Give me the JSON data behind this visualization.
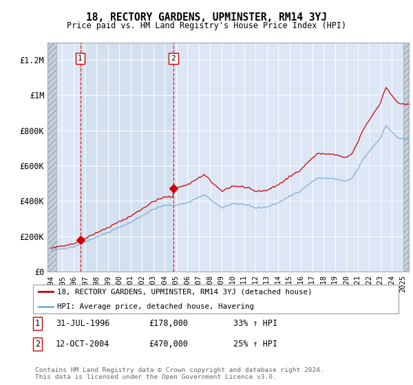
{
  "title": "18, RECTORY GARDENS, UPMINSTER, RM14 3YJ",
  "subtitle": "Price paid vs. HM Land Registry's House Price Index (HPI)",
  "ylabel_ticks": [
    "£0",
    "£200K",
    "£400K",
    "£600K",
    "£800K",
    "£1M",
    "£1.2M"
  ],
  "ylim": [
    0,
    1300000
  ],
  "xlim_start": 1993.7,
  "xlim_end": 2025.5,
  "sale1_x": 1996.58,
  "sale1_y": 178000,
  "sale1_label": "1",
  "sale2_x": 2004.78,
  "sale2_y": 470000,
  "sale2_label": "2",
  "hatch_left_end": 1994.5,
  "hatch_right_start": 2025.0,
  "shade_between_start": 1994.5,
  "shade_between_end": 2025.0,
  "bg_color": "#e8eef7",
  "plot_bg": "#dde6f5",
  "shade_color": "#dce8f5",
  "hatch_color": "#c8d0dc",
  "legend1": "18, RECTORY GARDENS, UPMINSTER, RM14 3YJ (detached house)",
  "legend2": "HPI: Average price, detached house, Havering",
  "note1_label": "1",
  "note1_date": "31-JUL-1996",
  "note1_price": "£178,000",
  "note1_hpi": "33% ↑ HPI",
  "note2_label": "2",
  "note2_date": "12-OCT-2004",
  "note2_price": "£470,000",
  "note2_hpi": "25% ↑ HPI",
  "footer": "Contains HM Land Registry data © Crown copyright and database right 2024.\nThis data is licensed under the Open Government Licence v3.0.",
  "line_color_red": "#cc0000",
  "line_color_blue": "#7ab0d4",
  "marker_color": "#cc0000",
  "grid_color": "#ffffff"
}
